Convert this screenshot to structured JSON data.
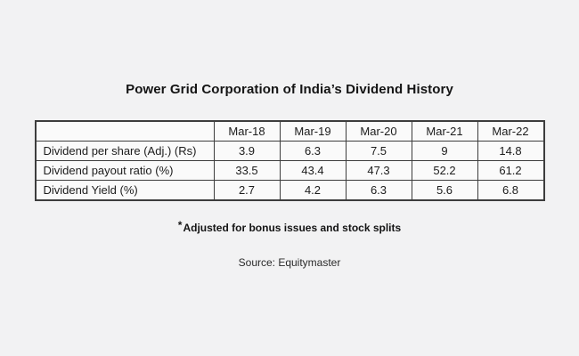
{
  "title": "Power Grid Corporation of India’s Dividend History",
  "footnote": {
    "marker": "*",
    "text": "Adjusted for bonus issues and stock splits"
  },
  "source": "Source: Equitymaster",
  "colors": {
    "background": "#f2f2f3",
    "table_cell_background": "#fafafa",
    "table_border": "#3d3d3d",
    "text": "#1c1c1c"
  },
  "chart_data": {
    "type": "table",
    "title": "Power Grid Corporation of India’s Dividend History",
    "columns": [
      "",
      "Mar-18",
      "Mar-19",
      "Mar-20",
      "Mar-21",
      "Mar-22"
    ],
    "rows": [
      {
        "label": "Dividend per share (Adj.) (Rs)",
        "values": [
          "3.9",
          "6.3",
          "7.5",
          "9",
          "14.8"
        ]
      },
      {
        "label": "Dividend payout ratio (%)",
        "values": [
          "33.5",
          "43.4",
          "47.3",
          "52.2",
          "61.2"
        ]
      },
      {
        "label": "Dividend Yield (%)",
        "values": [
          "2.7",
          "4.2",
          "6.3",
          "5.6",
          "6.8"
        ]
      }
    ],
    "layout": {
      "header_position": "top-row",
      "grid": true,
      "footnote": "*Adjusted for bonus issues and stock splits",
      "source": "Source: Equitymaster"
    }
  }
}
